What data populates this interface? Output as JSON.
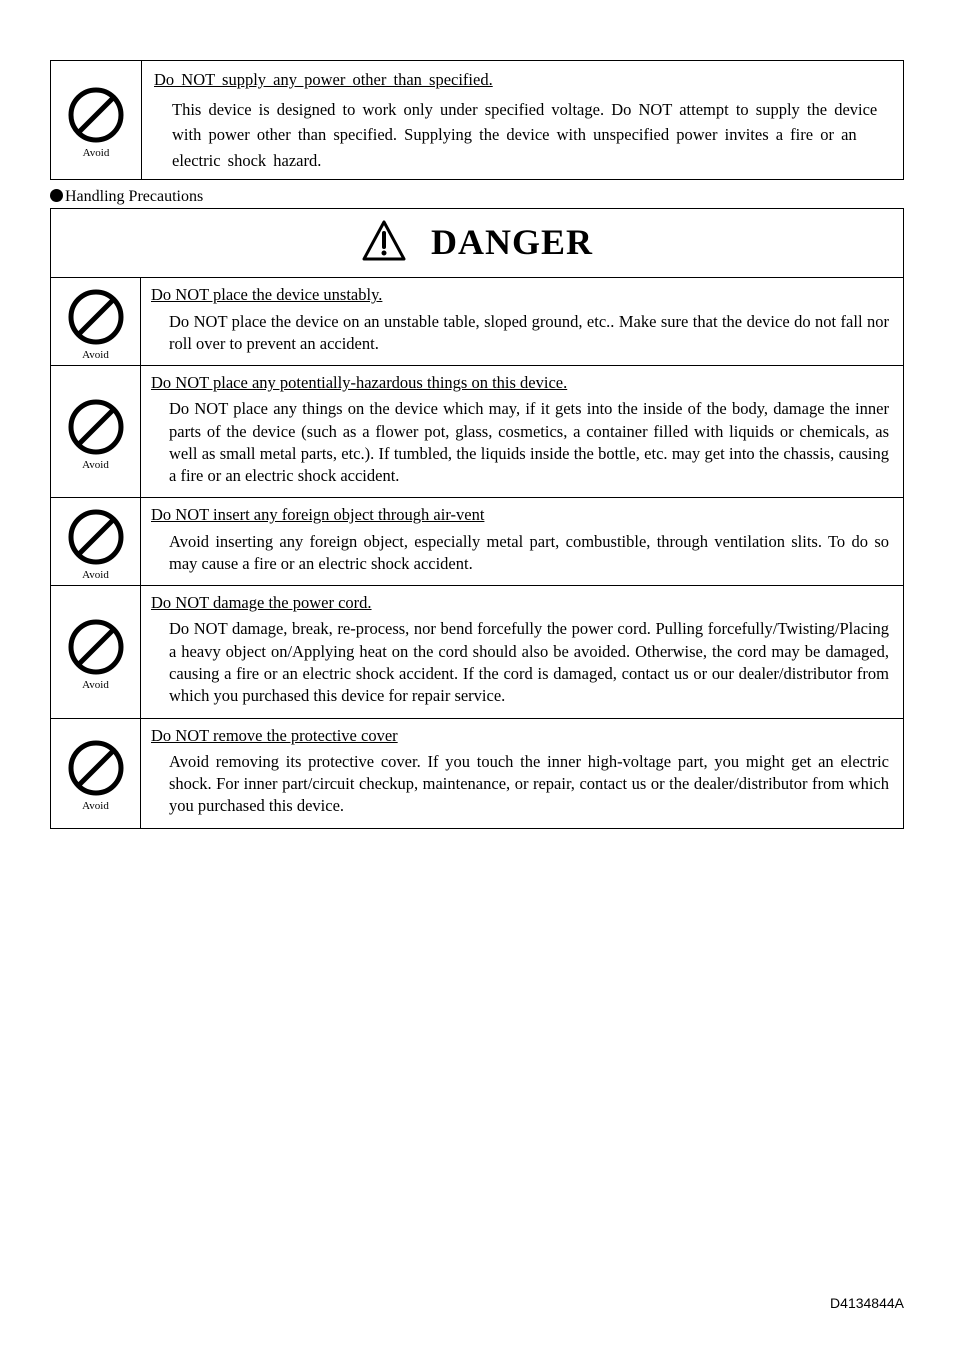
{
  "iconLabel": "Avoid",
  "topBox": {
    "title": "Do NOT supply any power other than specified.",
    "body": "This device is designed to work only under specified voltage. Do NOT attempt to supply the device with power other than specified. Supplying the device with unspecified power invites a fire or an electric shock hazard."
  },
  "sectionLabel": "Handling Precautions",
  "dangerWord": "DANGER",
  "rows": [
    {
      "title": "Do NOT place the device unstably.",
      "body": "Do NOT place the device on an unstable table, sloped ground, etc.. Make sure that the device do not fall nor roll over to prevent an accident."
    },
    {
      "title": "Do NOT place any potentially-hazardous things on this device.",
      "body": "Do NOT place any things on the device which may, if it gets into the inside of the body, damage the inner parts of the device (such as a flower pot, glass, cosmetics, a container filled with liquids or chemicals, as well as small metal parts, etc.). If tumbled, the liquids inside the bottle, etc. may get into the chassis, causing a fire or an electric shock accident."
    },
    {
      "title": "Do NOT insert any foreign object through air-vent",
      "body": "Avoid inserting any foreign object, especially metal part, combustible, through ventilation slits. To do so may cause a fire or an electric shock accident."
    },
    {
      "title": "Do NOT damage the power cord.",
      "body": "Do NOT damage, break, re-process, nor bend forcefully the power cord. Pulling forcefully/Twisting/Placing a heavy object on/Applying heat on the cord should also be avoided. Otherwise, the cord may be damaged, causing a fire or an electric shock accident. If the cord is damaged, contact us or our dealer/distributor from which you purchased this device for repair service."
    },
    {
      "title": "Do NOT remove the protective cover",
      "body": "Avoid removing its protective cover. If you touch the inner high-voltage part, you might get an electric shock. For inner part/circuit checkup, maintenance, or repair, contact us or the dealer/distributor from which you purchased this device."
    }
  ],
  "footer": "D4134844A",
  "colors": {
    "text": "#000000",
    "bg": "#ffffff",
    "border": "#000000"
  }
}
